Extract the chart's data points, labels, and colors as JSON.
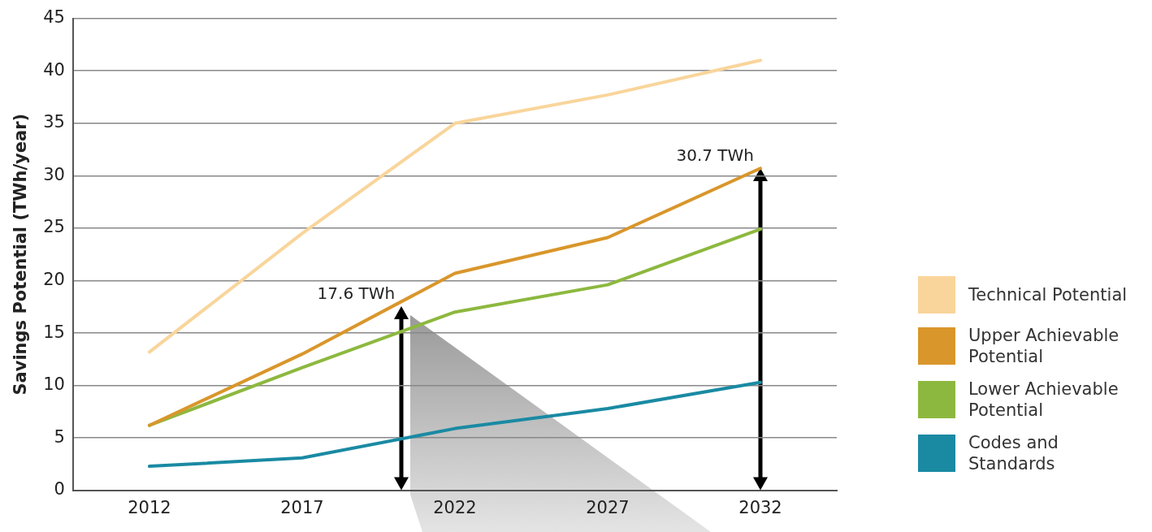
{
  "chart_data": {
    "type": "line",
    "ylabel": "Savings Potential (TWh/year)",
    "categories": [
      "2012",
      "2017",
      "2022",
      "2027",
      "2032"
    ],
    "series": [
      {
        "name": "Technical Potential",
        "color": "#f9d59b",
        "values": [
          13.2,
          24.5,
          35,
          37.7,
          41
        ]
      },
      {
        "name": "Upper Achievable Potential",
        "color": "#d9962b",
        "values": [
          6.2,
          13,
          20.7,
          24.1,
          30.7
        ]
      },
      {
        "name": "Lower Achievable Potential",
        "color": "#8db83f",
        "values": [
          6.2,
          11.7,
          17,
          19.6,
          24.9
        ]
      },
      {
        "name": "Codes and Standards",
        "color": "#1a8aa3",
        "values": [
          2.3,
          3.1,
          5.9,
          7.8,
          10.3
        ]
      }
    ],
    "ylim": [
      0,
      45
    ],
    "yticks": [
      0,
      5,
      10,
      15,
      20,
      25,
      30,
      35,
      40,
      45
    ],
    "grid": "y",
    "legend": "right",
    "marker": "none",
    "line_style": "solid",
    "annotations": [
      "17.6 TWh",
      {
        "text": "30.7 TWh",
        "x": "2032",
        "y": 30.7
      }
    ]
  }
}
